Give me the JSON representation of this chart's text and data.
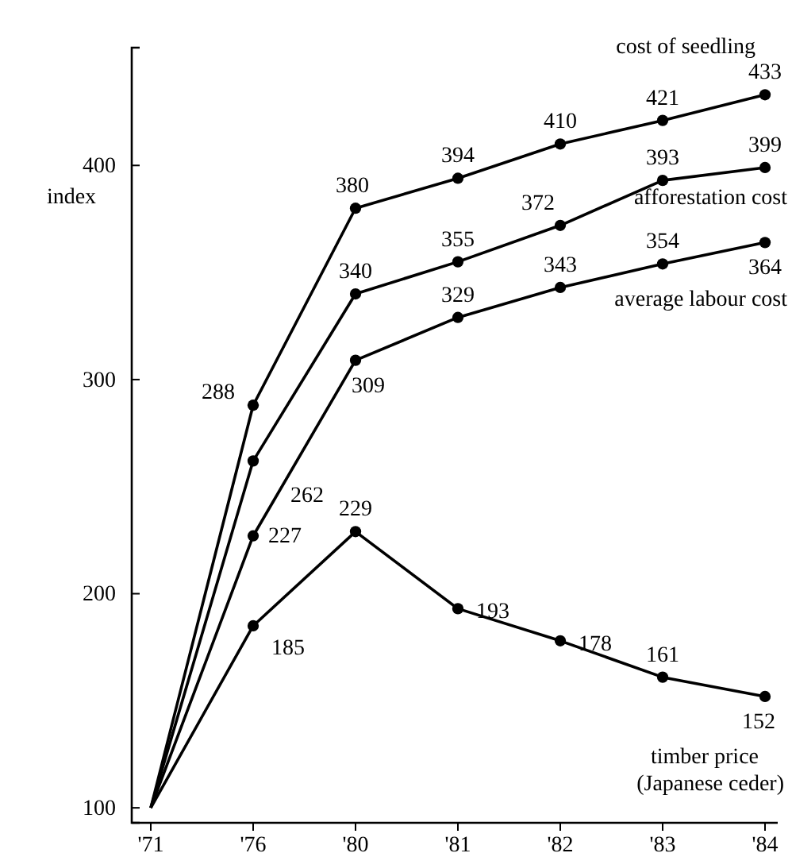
{
  "chart_data": {
    "type": "line",
    "ylabel": "index",
    "categories": [
      "'71",
      "'76",
      "'80",
      "'81",
      "'82",
      "'83",
      "'84"
    ],
    "ylim": [
      93,
      455
    ],
    "yticks": [
      100,
      200,
      300,
      400
    ],
    "marker": "circle",
    "line_style": "solid",
    "grid": false,
    "series": [
      {
        "name": "cost of seedling",
        "color": "#000000",
        "values": [
          100,
          288,
          380,
          394,
          410,
          421,
          433
        ],
        "value_labels": [
          null,
          "288",
          "380",
          "394",
          "410",
          "421",
          "433"
        ]
      },
      {
        "name": "afforestation cost",
        "color": "#000000",
        "values": [
          100,
          262,
          340,
          355,
          372,
          393,
          399
        ],
        "value_labels": [
          null,
          "262",
          "340",
          "355",
          "372",
          "393",
          "399"
        ]
      },
      {
        "name": "average labour cost",
        "color": "#000000",
        "values": [
          100,
          227,
          309,
          329,
          343,
          354,
          364
        ],
        "value_labels": [
          null,
          "227",
          "309",
          "329",
          "343",
          "354",
          "364"
        ]
      },
      {
        "name": "timber price (Japanese ceder)",
        "color": "#000000",
        "values": [
          100,
          185,
          229,
          193,
          178,
          161,
          152
        ],
        "value_labels": [
          null,
          "185",
          "229",
          "193",
          "178",
          "161",
          "152"
        ]
      }
    ]
  }
}
